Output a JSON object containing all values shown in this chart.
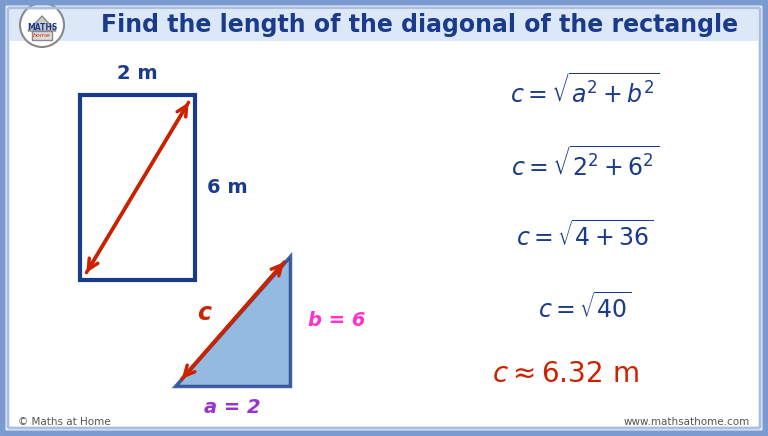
{
  "title": "Find the length of the diagonal of the rectangle",
  "title_color": "#1a3a8a",
  "bg_color": "#e8eef8",
  "inner_bg_color": "#ffffff",
  "border_color": "#6a8acc",
  "rect_color": "#1a3a8a",
  "diagonal_color": "#cc2200",
  "width_label": "2 m",
  "height_label": "6 m",
  "label_color": "#1a3a8a",
  "a_label": "a = 2",
  "b_label": "b = 6",
  "c_label": "c",
  "a_color": "#9933cc",
  "b_color": "#ff33cc",
  "c_color": "#cc2200",
  "eq_color": "#1a3a8a",
  "eq5_color": "#cc2200",
  "footer_left": "© Maths at Home",
  "footer_right": "www.mathsathome.com",
  "border_outer": "#7a9ad0",
  "border_inner": "#aabfe0"
}
